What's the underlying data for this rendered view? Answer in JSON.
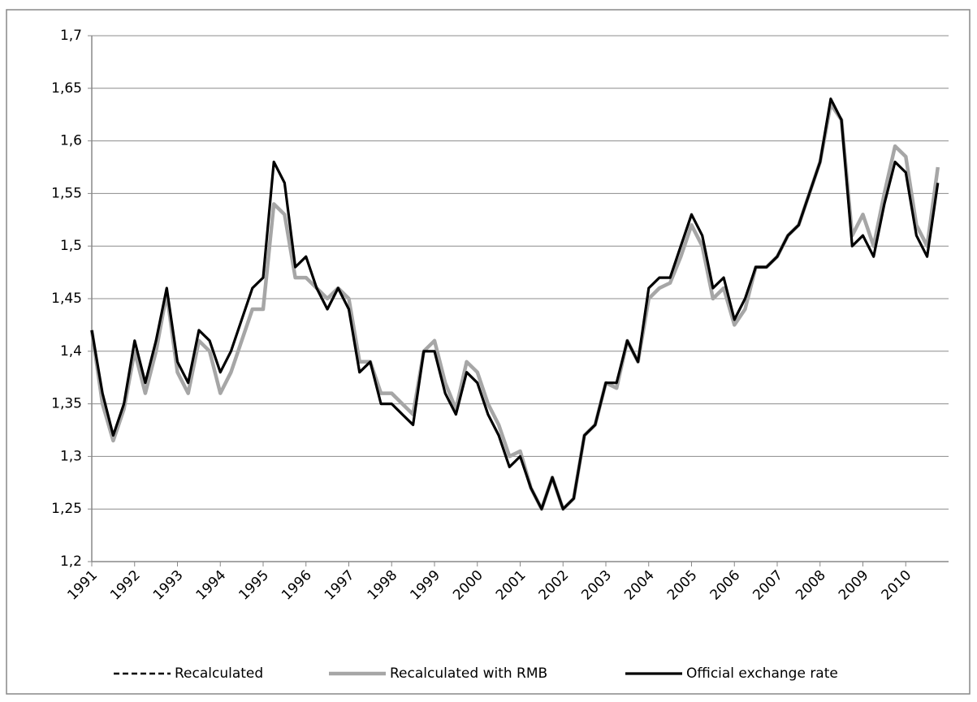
{
  "chart_data": {
    "type": "line",
    "x": [
      1991,
      1991.25,
      1991.5,
      1991.75,
      1992,
      1992.25,
      1992.5,
      1992.75,
      1993,
      1993.25,
      1993.5,
      1993.75,
      1994,
      1994.25,
      1994.5,
      1994.75,
      1995,
      1995.25,
      1995.5,
      1995.75,
      1996,
      1996.25,
      1996.5,
      1996.75,
      1997,
      1997.25,
      1997.5,
      1997.75,
      1998,
      1998.25,
      1998.5,
      1998.75,
      1999,
      1999.25,
      1999.5,
      1999.75,
      2000,
      2000.25,
      2000.5,
      2000.75,
      2001,
      2001.25,
      2001.5,
      2001.75,
      2002,
      2002.25,
      2002.5,
      2002.75,
      2003,
      2003.25,
      2003.5,
      2003.75,
      2004,
      2004.25,
      2004.5,
      2004.75,
      2005,
      2005.25,
      2005.5,
      2005.75,
      2006,
      2006.25,
      2006.5,
      2006.75,
      2007,
      2007.25,
      2007.5,
      2007.75,
      2008,
      2008.25,
      2008.5,
      2008.75,
      2009,
      2009.25,
      2009.5,
      2009.75,
      2010,
      2010.25,
      2010.5,
      2010.75
    ],
    "series": [
      {
        "name": "Recalculated",
        "color": "#000000",
        "dash": true,
        "values": [
          1.42,
          1.36,
          1.32,
          1.35,
          1.41,
          1.37,
          1.41,
          1.46,
          1.39,
          1.37,
          1.42,
          1.41,
          1.38,
          1.4,
          1.43,
          1.46,
          1.47,
          1.58,
          1.56,
          1.48,
          1.49,
          1.46,
          1.44,
          1.46,
          1.44,
          1.38,
          1.39,
          1.35,
          1.35,
          1.34,
          1.33,
          1.4,
          1.4,
          1.36,
          1.34,
          1.38,
          1.37,
          1.34,
          1.32,
          1.29,
          1.3,
          1.27,
          1.25,
          1.28,
          1.25,
          1.26,
          1.32,
          1.33,
          1.37,
          1.37,
          1.41,
          1.39,
          1.46,
          1.47,
          1.47,
          1.5,
          1.53,
          1.51,
          1.46,
          1.47,
          1.43,
          1.45,
          1.48,
          1.48,
          1.49,
          1.51,
          1.52,
          1.55,
          1.58,
          1.64,
          1.62,
          1.5,
          1.51,
          1.49,
          1.54,
          1.58,
          1.57,
          1.51,
          1.49,
          1.56
        ]
      },
      {
        "name": "Recalculated with RMB",
        "color": "#a6a6a6",
        "dash": false,
        "values": [
          1.42,
          1.35,
          1.315,
          1.345,
          1.4,
          1.36,
          1.4,
          1.455,
          1.38,
          1.36,
          1.41,
          1.4,
          1.36,
          1.38,
          1.41,
          1.44,
          1.44,
          1.54,
          1.53,
          1.47,
          1.47,
          1.46,
          1.45,
          1.46,
          1.45,
          1.39,
          1.39,
          1.36,
          1.36,
          1.35,
          1.34,
          1.4,
          1.41,
          1.37,
          1.345,
          1.39,
          1.38,
          1.35,
          1.33,
          1.3,
          1.305,
          1.27,
          1.25,
          1.28,
          1.25,
          1.26,
          1.32,
          1.33,
          1.37,
          1.365,
          1.41,
          1.39,
          1.45,
          1.46,
          1.465,
          1.49,
          1.52,
          1.5,
          1.45,
          1.46,
          1.425,
          1.44,
          1.48,
          1.48,
          1.49,
          1.51,
          1.52,
          1.55,
          1.58,
          1.635,
          1.62,
          1.51,
          1.53,
          1.5,
          1.55,
          1.595,
          1.585,
          1.52,
          1.5,
          1.575
        ]
      },
      {
        "name": "Official exchange rate",
        "color": "#000000",
        "dash": false,
        "values": [
          1.42,
          1.36,
          1.32,
          1.35,
          1.41,
          1.37,
          1.41,
          1.46,
          1.39,
          1.37,
          1.42,
          1.41,
          1.38,
          1.4,
          1.43,
          1.46,
          1.47,
          1.58,
          1.56,
          1.48,
          1.49,
          1.46,
          1.44,
          1.46,
          1.44,
          1.38,
          1.39,
          1.35,
          1.35,
          1.34,
          1.33,
          1.4,
          1.4,
          1.36,
          1.34,
          1.38,
          1.37,
          1.34,
          1.32,
          1.29,
          1.3,
          1.27,
          1.25,
          1.28,
          1.25,
          1.26,
          1.32,
          1.33,
          1.37,
          1.37,
          1.41,
          1.39,
          1.46,
          1.47,
          1.47,
          1.5,
          1.53,
          1.51,
          1.46,
          1.47,
          1.43,
          1.45,
          1.48,
          1.48,
          1.49,
          1.51,
          1.52,
          1.55,
          1.58,
          1.64,
          1.62,
          1.5,
          1.51,
          1.49,
          1.54,
          1.58,
          1.57,
          1.51,
          1.49,
          1.56
        ]
      }
    ],
    "xlim": [
      1991,
      2011
    ],
    "xticks": [
      1991,
      1992,
      1993,
      1994,
      1995,
      1996,
      1997,
      1998,
      1999,
      2000,
      2001,
      2002,
      2003,
      2004,
      2005,
      2006,
      2007,
      2008,
      2009,
      2010
    ],
    "ylim": [
      1.2,
      1.7
    ],
    "yticks": [
      {
        "value": 1.2,
        "label": "1,2"
      },
      {
        "value": 1.25,
        "label": "1,25"
      },
      {
        "value": 1.3,
        "label": "1,3"
      },
      {
        "value": 1.35,
        "label": "1,35"
      },
      {
        "value": 1.4,
        "label": "1,4"
      },
      {
        "value": 1.45,
        "label": "1,45"
      },
      {
        "value": 1.5,
        "label": "1,5"
      },
      {
        "value": 1.55,
        "label": "1,55"
      },
      {
        "value": 1.6,
        "label": "1,6"
      },
      {
        "value": 1.65,
        "label": "1,65"
      },
      {
        "value": 1.7,
        "label": "1,7"
      }
    ],
    "grid": true,
    "legend": "bottom"
  }
}
